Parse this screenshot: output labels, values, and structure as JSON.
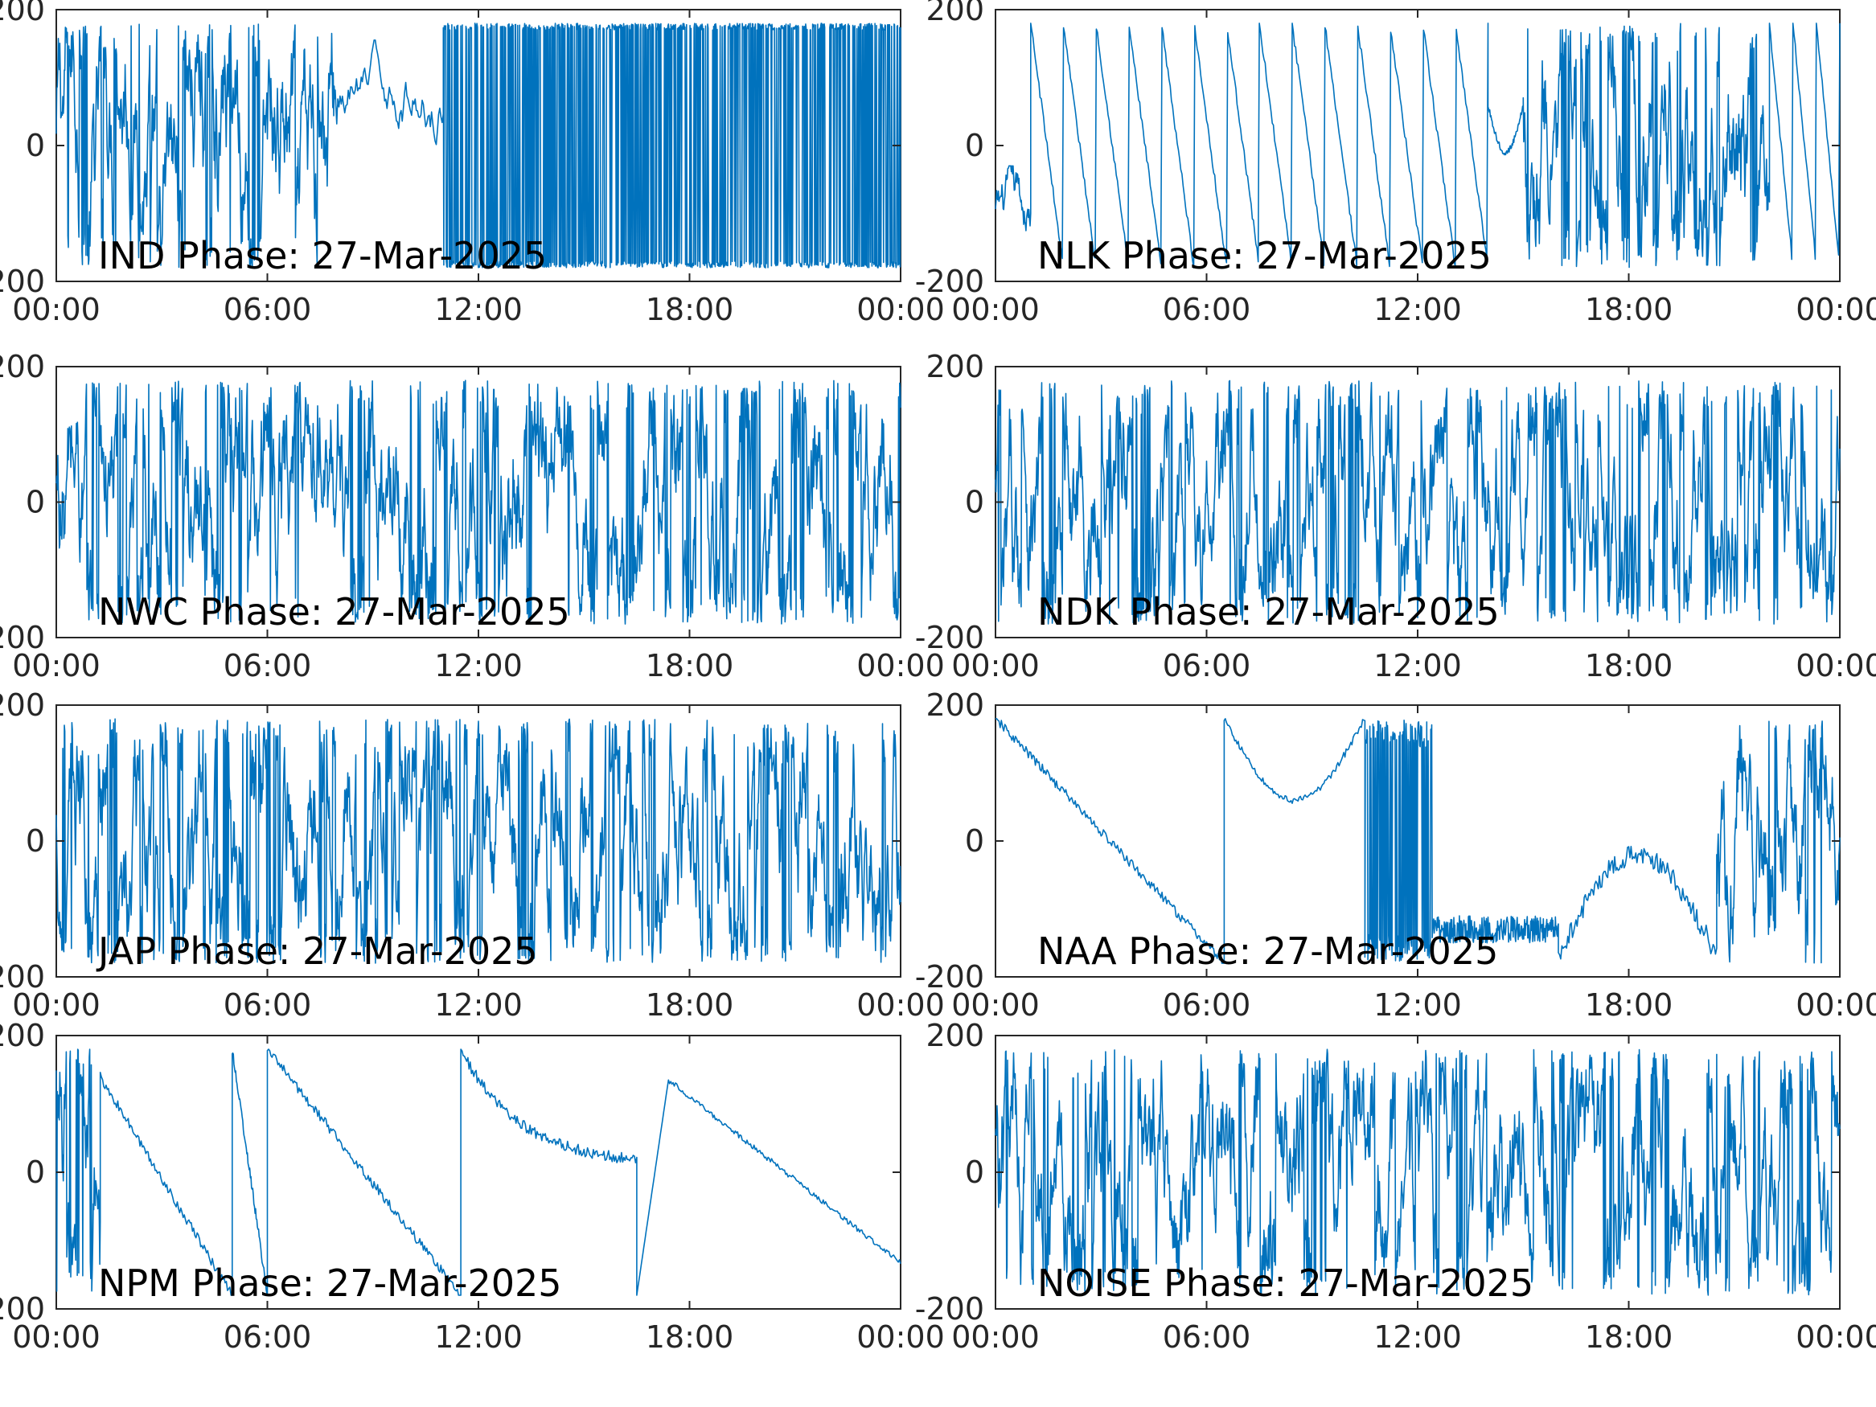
{
  "figure": {
    "line_color": "#0072BD",
    "axes_color": "#262626",
    "background": "#ffffff"
  },
  "chart_data": [
    {
      "type": "line",
      "title": "IND Phase: 27-Mar-2025",
      "x_ticks": [
        "00:00",
        "06:00",
        "12:00",
        "18:00",
        "00:00"
      ],
      "y_ticks": [
        "-200",
        "0",
        "200"
      ],
      "ylim": [
        -200,
        200
      ],
      "xlim": [
        "00:00",
        "24:00"
      ],
      "segments": [
        {
          "x_range": [
            "00:00",
            "08:00"
          ],
          "behavior": "frequent wraps",
          "min": -180,
          "max": 180,
          "baseline": 0
        },
        {
          "x_range": [
            "08:00",
            "11:00"
          ],
          "behavior": "noisy, upper half",
          "min": -60,
          "max": 180,
          "baseline": 80
        },
        {
          "x_range": [
            "11:00",
            "24:00"
          ],
          "behavior": "dense wraps",
          "min": -180,
          "max": 180,
          "baseline": 0
        }
      ]
    },
    {
      "type": "line",
      "title": "NLK Phase: 27-Mar-2025",
      "x_ticks": [
        "00:00",
        "06:00",
        "12:00",
        "18:00",
        "00:00"
      ],
      "y_ticks": [
        "-200",
        "0",
        "200"
      ],
      "ylim": [
        -200,
        200
      ],
      "xlim": [
        "00:00",
        "24:00"
      ],
      "segments": [
        {
          "x_range": [
            "00:00",
            "01:00"
          ],
          "behavior": "drift",
          "min": -150,
          "max": -30,
          "baseline": -100
        },
        {
          "x_range": [
            "01:00",
            "14:00"
          ],
          "behavior": "sawtooth descending",
          "min": -180,
          "max": 180,
          "baseline": 0
        },
        {
          "x_range": [
            "14:00",
            "15:00"
          ],
          "behavior": "dip and recover",
          "min": -10,
          "max": 60,
          "baseline": 30
        },
        {
          "x_range": [
            "15:00",
            "22:00"
          ],
          "behavior": "frequent wraps",
          "min": -180,
          "max": 180,
          "baseline": 20
        },
        {
          "x_range": [
            "22:00",
            "24:00"
          ],
          "behavior": "sawtooth descending",
          "min": -180,
          "max": 180,
          "baseline": 0
        }
      ]
    },
    {
      "type": "line",
      "title": "NWC Phase: 27-Mar-2025",
      "x_ticks": [
        "00:00",
        "06:00",
        "12:00",
        "18:00",
        "00:00"
      ],
      "y_ticks": [
        "-200",
        "0",
        "200"
      ],
      "ylim": [
        -200,
        200
      ],
      "xlim": [
        "00:00",
        "24:00"
      ],
      "segments": [
        {
          "x_range": [
            "00:00",
            "24:00"
          ],
          "behavior": "frequent wraps",
          "min": -180,
          "max": 180,
          "baseline": 0
        }
      ]
    },
    {
      "type": "line",
      "title": "NDK Phase: 27-Mar-2025",
      "x_ticks": [
        "00:00",
        "06:00",
        "12:00",
        "18:00",
        "00:00"
      ],
      "y_ticks": [
        "-200",
        "0",
        "200"
      ],
      "ylim": [
        -200,
        200
      ],
      "xlim": [
        "00:00",
        "24:00"
      ],
      "segments": [
        {
          "x_range": [
            "00:00",
            "24:00"
          ],
          "behavior": "frequent wraps",
          "min": -180,
          "max": 180,
          "baseline": 0
        }
      ]
    },
    {
      "type": "line",
      "title": "JAP Phase: 27-Mar-2025",
      "x_ticks": [
        "00:00",
        "06:00",
        "12:00",
        "18:00",
        "00:00"
      ],
      "y_ticks": [
        "-200",
        "0",
        "200"
      ],
      "ylim": [
        -200,
        200
      ],
      "xlim": [
        "00:00",
        "24:00"
      ],
      "segments": [
        {
          "x_range": [
            "00:00",
            "24:00"
          ],
          "behavior": "frequent wraps",
          "min": -180,
          "max": 180,
          "baseline": 0
        }
      ]
    },
    {
      "type": "line",
      "title": "NAA Phase: 27-Mar-2025",
      "x_ticks": [
        "00:00",
        "06:00",
        "12:00",
        "18:00",
        "00:00"
      ],
      "y_ticks": [
        "-200",
        "0",
        "200"
      ],
      "ylim": [
        -200,
        200
      ],
      "xlim": [
        "00:00",
        "24:00"
      ],
      "segments": [
        {
          "x_range": [
            "00:00",
            "06:30"
          ],
          "behavior": "slow descent",
          "min": -180,
          "max": 180,
          "baseline": 0
        },
        {
          "x_range": [
            "06:30",
            "10:30"
          ],
          "behavior": "smooth arc",
          "min": 60,
          "max": 180,
          "baseline": 100
        },
        {
          "x_range": [
            "10:30",
            "16:00"
          ],
          "behavior": "frequent wraps then low",
          "min": -180,
          "max": 180,
          "baseline": -130
        },
        {
          "x_range": [
            "16:00",
            "20:30"
          ],
          "behavior": "broad hump",
          "min": -170,
          "max": -20,
          "baseline": -60
        },
        {
          "x_range": [
            "20:30",
            "24:00"
          ],
          "behavior": "frequent wraps",
          "min": -180,
          "max": 180,
          "baseline": -80
        }
      ]
    },
    {
      "type": "line",
      "title": "NPM Phase: 27-Mar-2025",
      "x_ticks": [
        "00:00",
        "06:00",
        "12:00",
        "18:00",
        "00:00"
      ],
      "y_ticks": [
        "-200",
        "0",
        "200"
      ],
      "ylim": [
        -200,
        200
      ],
      "xlim": [
        "00:00",
        "24:00"
      ],
      "segments": [
        {
          "x_range": [
            "00:00",
            "01:15"
          ],
          "behavior": "frequent wraps",
          "min": -180,
          "max": 180,
          "baseline": 100
        },
        {
          "x_range": [
            "01:15",
            "05:00"
          ],
          "behavior": "linear descent",
          "min": -180,
          "max": 140,
          "baseline": 0
        },
        {
          "x_range": [
            "05:00",
            "06:00"
          ],
          "behavior": "steep descent",
          "min": -180,
          "max": 180,
          "baseline": 0
        },
        {
          "x_range": [
            "06:00",
            "11:30"
          ],
          "behavior": "linear descent",
          "min": -180,
          "max": 180,
          "baseline": 0
        },
        {
          "x_range": [
            "11:30",
            "16:30"
          ],
          "behavior": "decay to mid",
          "min": 10,
          "max": 180,
          "baseline": 60
        },
        {
          "x_range": [
            "16:30",
            "24:00"
          ],
          "behavior": "rise then slow descent",
          "min": -180,
          "max": 135,
          "baseline": 30
        }
      ]
    },
    {
      "type": "line",
      "title": "NOISE Phase: 27-Mar-2025",
      "x_ticks": [
        "00:00",
        "06:00",
        "12:00",
        "18:00",
        "00:00"
      ],
      "y_ticks": [
        "-200",
        "0",
        "200"
      ],
      "ylim": [
        -200,
        200
      ],
      "xlim": [
        "00:00",
        "24:00"
      ],
      "segments": [
        {
          "x_range": [
            "00:00",
            "24:00"
          ],
          "behavior": "frequent wraps",
          "min": -180,
          "max": 180,
          "baseline": 0
        }
      ]
    }
  ]
}
